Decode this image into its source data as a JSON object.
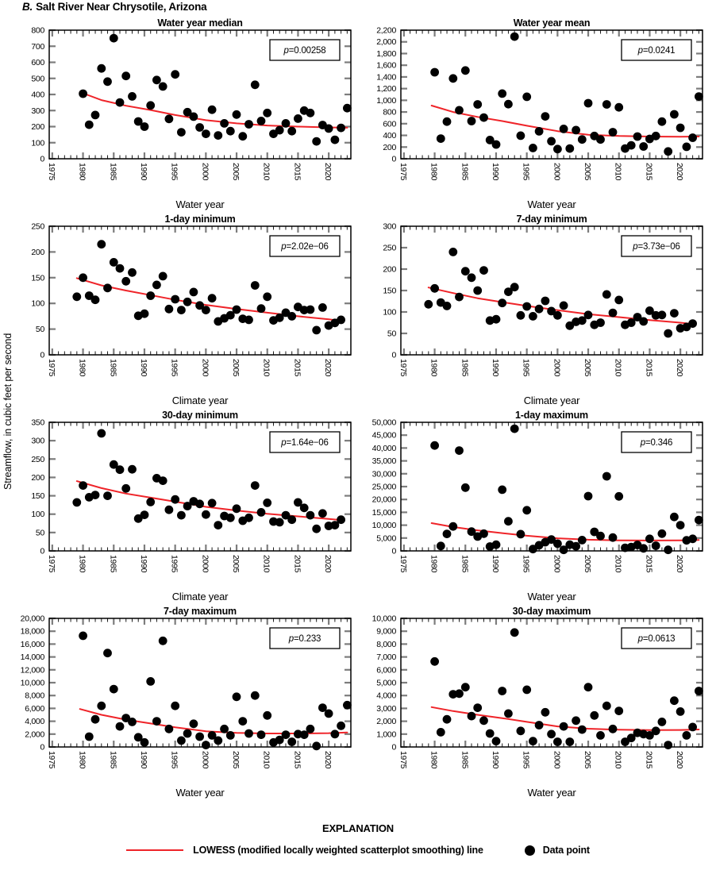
{
  "figure": {
    "title_prefix": "B.",
    "title": "Salt River Near Chrysotile, Arizona",
    "y_axis_label": "Streamflow, in cubic feet per second",
    "legend": {
      "heading": "EXPLANATION",
      "lowess_label": "LOWESS (modified locally weighted scatterplot smoothing) line",
      "point_label": "Data point"
    },
    "colors": {
      "lowess": "#ef2429",
      "point": "#000000"
    },
    "x_axis": {
      "minor_from": 1975,
      "minor_to": 2023,
      "minor_step": 1,
      "major_step": 5,
      "major_label_to": 2020
    }
  },
  "chart_data": [
    {
      "type": "scatter",
      "title": "Water year median",
      "xlabel": "Water year",
      "p_symbol": "p",
      "p_text": "=0.00258",
      "xlim": [
        1974.5,
        2023.6
      ],
      "ylim": [
        0,
        800
      ],
      "y_step": 100,
      "x": [
        1980,
        1981,
        1982,
        1983,
        1984,
        1985,
        1986,
        1987,
        1988,
        1989,
        1990,
        1991,
        1992,
        1993,
        1994,
        1995,
        1996,
        1997,
        1998,
        1999,
        2000,
        2001,
        2002,
        2003,
        2004,
        2005,
        2006,
        2007,
        2008,
        2009,
        2010,
        2011,
        2012,
        2013,
        2014,
        2015,
        2016,
        2017,
        2018,
        2019,
        2020,
        2021,
        2022,
        2023
      ],
      "y": [
        405,
        212,
        272,
        562,
        480,
        750,
        350,
        515,
        388,
        232,
        200,
        332,
        490,
        450,
        248,
        525,
        165,
        290,
        262,
        195,
        155,
        305,
        145,
        220,
        172,
        275,
        140,
        215,
        460,
        235,
        285,
        155,
        178,
        220,
        172,
        250,
        300,
        285,
        108,
        210,
        188,
        118,
        192,
        315
      ],
      "lowess": {
        "x": [
          1979.5,
          1983,
          1987,
          1991,
          1995,
          2000,
          2005,
          2010,
          2015,
          2020,
          2023
        ],
        "y": [
          415,
          365,
          330,
          303,
          272,
          240,
          220,
          207,
          200,
          195,
          193
        ]
      }
    },
    {
      "type": "scatter",
      "title": "Water year mean",
      "xlabel": "Water year",
      "p_symbol": "p",
      "p_text": "=0.0241",
      "xlim": [
        1974.5,
        2023.6
      ],
      "ylim": [
        0,
        2200
      ],
      "y_step": 200,
      "x": [
        1980,
        1981,
        1982,
        1983,
        1984,
        1985,
        1986,
        1987,
        1988,
        1989,
        1990,
        1991,
        1992,
        1993,
        1994,
        1995,
        1996,
        1997,
        1998,
        1999,
        2000,
        2001,
        2002,
        2003,
        2004,
        2005,
        2006,
        2007,
        2008,
        2009,
        2010,
        2011,
        2012,
        2013,
        2014,
        2015,
        2016,
        2017,
        2018,
        2019,
        2020,
        2021,
        2022,
        2023
      ],
      "y": [
        1480,
        345,
        635,
        1375,
        830,
        1510,
        645,
        930,
        705,
        320,
        245,
        1115,
        935,
        2090,
        395,
        1060,
        185,
        470,
        725,
        300,
        165,
        510,
        175,
        490,
        330,
        950,
        390,
        330,
        930,
        455,
        880,
        175,
        230,
        380,
        210,
        340,
        390,
        635,
        125,
        760,
        530,
        205,
        360,
        1065
      ],
      "lowess": {
        "x": [
          1979.5,
          1983,
          1987,
          1991,
          1995,
          2000,
          2005,
          2010,
          2015,
          2020,
          2023
        ],
        "y": [
          910,
          800,
          715,
          645,
          565,
          472,
          412,
          390,
          380,
          378,
          380
        ]
      }
    },
    {
      "type": "scatter",
      "title": "1-day minimum",
      "xlabel": "Climate year",
      "p_symbol": "p",
      "p_text": "=2.02e−06",
      "xlim": [
        1974.5,
        2023.6
      ],
      "ylim": [
        0,
        250
      ],
      "y_step": 50,
      "x": [
        1979,
        1980,
        1981,
        1982,
        1983,
        1984,
        1985,
        1986,
        1987,
        1988,
        1989,
        1990,
        1991,
        1992,
        1993,
        1994,
        1995,
        1996,
        1997,
        1998,
        1999,
        2000,
        2001,
        2002,
        2003,
        2004,
        2005,
        2006,
        2007,
        2008,
        2009,
        2010,
        2011,
        2012,
        2013,
        2014,
        2015,
        2016,
        2017,
        2018,
        2019,
        2020,
        2021,
        2022
      ],
      "y": [
        113,
        150,
        115,
        107,
        215,
        130,
        180,
        168,
        143,
        160,
        76,
        80,
        115,
        136,
        153,
        89,
        108,
        87,
        103,
        122,
        96,
        87,
        110,
        65,
        71,
        77,
        88,
        70,
        68,
        135,
        90,
        113,
        67,
        72,
        82,
        75,
        93,
        87,
        88,
        48,
        92,
        57,
        62,
        68
      ],
      "lowess": {
        "x": [
          1979,
          1983,
          1987,
          1991,
          1995,
          2000,
          2005,
          2010,
          2015,
          2020,
          2022
        ],
        "y": [
          149,
          135,
          125,
          116,
          107,
          97,
          89,
          82,
          75,
          69,
          66
        ]
      }
    },
    {
      "type": "scatter",
      "title": "7-day minimum",
      "xlabel": "Climate year",
      "p_symbol": "p",
      "p_text": "=3.73e−06",
      "xlim": [
        1974.5,
        2023.6
      ],
      "ylim": [
        0,
        300
      ],
      "y_step": 50,
      "x": [
        1979,
        1980,
        1981,
        1982,
        1983,
        1984,
        1985,
        1986,
        1987,
        1988,
        1989,
        1990,
        1991,
        1992,
        1993,
        1994,
        1995,
        1996,
        1997,
        1998,
        1999,
        2000,
        2001,
        2002,
        2003,
        2004,
        2005,
        2006,
        2007,
        2008,
        2009,
        2010,
        2011,
        2012,
        2013,
        2014,
        2015,
        2016,
        2017,
        2018,
        2019,
        2020,
        2021,
        2022
      ],
      "y": [
        118,
        155,
        122,
        114,
        240,
        135,
        195,
        180,
        150,
        197,
        80,
        83,
        121,
        147,
        158,
        92,
        113,
        90,
        107,
        126,
        102,
        92,
        115,
        68,
        77,
        80,
        93,
        70,
        75,
        141,
        98,
        128,
        70,
        75,
        88,
        78,
        103,
        92,
        93,
        50,
        97,
        62,
        65,
        73
      ],
      "lowess": {
        "x": [
          1979,
          1983,
          1987,
          1991,
          1995,
          2000,
          2005,
          2010,
          2015,
          2020,
          2022
        ],
        "y": [
          157,
          144,
          132,
          123,
          114,
          104,
          95,
          88,
          81,
          75,
          72
        ]
      }
    },
    {
      "type": "scatter",
      "title": "30-day minimum",
      "xlabel": "Climate year",
      "p_symbol": "p",
      "p_text": "=1.64e−06",
      "xlim": [
        1974.5,
        2023.6
      ],
      "ylim": [
        0,
        350
      ],
      "y_step": 50,
      "x": [
        1979,
        1980,
        1981,
        1982,
        1983,
        1984,
        1985,
        1986,
        1987,
        1988,
        1989,
        1990,
        1991,
        1992,
        1993,
        1994,
        1995,
        1996,
        1997,
        1998,
        1999,
        2000,
        2001,
        2002,
        2003,
        2004,
        2005,
        2006,
        2007,
        2008,
        2009,
        2010,
        2011,
        2012,
        2013,
        2014,
        2015,
        2016,
        2017,
        2018,
        2019,
        2020,
        2021,
        2022
      ],
      "y": [
        132,
        178,
        146,
        152,
        320,
        150,
        235,
        221,
        170,
        222,
        88,
        98,
        133,
        198,
        191,
        112,
        140,
        97,
        122,
        135,
        128,
        99,
        130,
        70,
        95,
        90,
        115,
        82,
        90,
        178,
        105,
        131,
        80,
        78,
        97,
        85,
        132,
        117,
        97,
        60,
        102,
        68,
        70,
        85
      ],
      "lowess": {
        "x": [
          1979,
          1983,
          1987,
          1991,
          1995,
          2000,
          2005,
          2010,
          2015,
          2020,
          2022
        ],
        "y": [
          190,
          171,
          156,
          145,
          134,
          120,
          110,
          101,
          94,
          87,
          84
        ]
      }
    },
    {
      "type": "scatter",
      "title": "1-day maximum",
      "xlabel": "Water year",
      "p_symbol": "p",
      "p_text": "=0.346",
      "xlim": [
        1974.5,
        2023.6
      ],
      "ylim": [
        0,
        50000
      ],
      "y_step": 5000,
      "x": [
        1980,
        1981,
        1982,
        1983,
        1984,
        1985,
        1986,
        1987,
        1988,
        1989,
        1990,
        1991,
        1992,
        1993,
        1994,
        1995,
        1996,
        1997,
        1998,
        1999,
        2000,
        2001,
        2002,
        2003,
        2004,
        2005,
        2006,
        2007,
        2008,
        2009,
        2010,
        2011,
        2012,
        2013,
        2014,
        2015,
        2016,
        2017,
        2018,
        2019,
        2020,
        2021,
        2022,
        2023
      ],
      "y": [
        41000,
        1900,
        6600,
        9500,
        39000,
        24600,
        7500,
        5600,
        6700,
        1700,
        2400,
        23800,
        11500,
        47500,
        6500,
        15800,
        700,
        2200,
        3400,
        4400,
        2800,
        400,
        2400,
        1800,
        4200,
        21300,
        7400,
        5800,
        29000,
        5200,
        21200,
        1200,
        1500,
        2300,
        1000,
        4700,
        2000,
        6700,
        400,
        13200,
        10000,
        4100,
        4700,
        12000
      ],
      "lowess": {
        "x": [
          1979.5,
          1983,
          1987,
          1991,
          1995,
          2000,
          2005,
          2010,
          2015,
          2020,
          2023
        ],
        "y": [
          10800,
          9300,
          8000,
          6900,
          5900,
          4900,
          4350,
          4100,
          4050,
          4100,
          4250
        ]
      }
    },
    {
      "type": "scatter",
      "title": "7-day maximum",
      "xlabel": "Water year",
      "p_symbol": "p",
      "p_text": "=0.233",
      "xlim": [
        1974.5,
        2023.6
      ],
      "ylim": [
        0,
        20000
      ],
      "y_step": 2000,
      "x": [
        1980,
        1981,
        1982,
        1983,
        1984,
        1985,
        1986,
        1987,
        1988,
        1989,
        1990,
        1991,
        1992,
        1993,
        1994,
        1995,
        1996,
        1997,
        1998,
        1999,
        2000,
        2001,
        2002,
        2003,
        2004,
        2005,
        2006,
        2007,
        2008,
        2009,
        2010,
        2011,
        2012,
        2013,
        2014,
        2015,
        2016,
        2017,
        2018,
        2019,
        2020,
        2021,
        2022,
        2023
      ],
      "y": [
        17300,
        1600,
        4300,
        6400,
        14600,
        9000,
        3200,
        4500,
        3900,
        1500,
        700,
        10200,
        4000,
        16500,
        2800,
        6400,
        1000,
        2100,
        3600,
        1600,
        300,
        1800,
        1000,
        2800,
        1800,
        7800,
        4000,
        2100,
        8000,
        1900,
        4900,
        700,
        1100,
        1900,
        800,
        2000,
        1900,
        2800,
        150,
        6100,
        5200,
        2000,
        3300,
        6500
      ],
      "lowess": {
        "x": [
          1979.5,
          1983,
          1987,
          1991,
          1995,
          2000,
          2005,
          2010,
          2015,
          2020,
          2023
        ],
        "y": [
          5900,
          5000,
          4250,
          3650,
          3050,
          2450,
          2180,
          2100,
          2100,
          2150,
          2250
        ]
      }
    },
    {
      "type": "scatter",
      "title": "30-day maximum",
      "xlabel": "Water year",
      "p_symbol": "p",
      "p_text": "=0.0613",
      "xlim": [
        1974.5,
        2023.6
      ],
      "ylim": [
        0,
        10000
      ],
      "y_step": 1000,
      "x": [
        1980,
        1981,
        1982,
        1983,
        1984,
        1985,
        1986,
        1987,
        1988,
        1989,
        1990,
        1991,
        1992,
        1993,
        1994,
        1995,
        1996,
        1997,
        1998,
        1999,
        2000,
        2001,
        2002,
        2003,
        2004,
        2005,
        2006,
        2007,
        2008,
        2009,
        2010,
        2011,
        2012,
        2013,
        2014,
        2015,
        2016,
        2017,
        2018,
        2019,
        2020,
        2021,
        2022,
        2023
      ],
      "y": [
        6650,
        1150,
        2150,
        4100,
        4150,
        4650,
        2400,
        3050,
        2050,
        1050,
        450,
        4350,
        2600,
        8900,
        1250,
        4450,
        450,
        1700,
        2700,
        1000,
        400,
        1600,
        400,
        2050,
        1350,
        4650,
        2450,
        900,
        3200,
        1400,
        2800,
        400,
        700,
        1100,
        1000,
        900,
        1250,
        1950,
        150,
        3600,
        2750,
        900,
        1550,
        4350
      ],
      "lowess": {
        "x": [
          1979.5,
          1983,
          1987,
          1991,
          1995,
          2000,
          2005,
          2010,
          2015,
          2020,
          2023
        ],
        "y": [
          3100,
          2790,
          2500,
          2240,
          1950,
          1600,
          1420,
          1340,
          1310,
          1320,
          1360
        ]
      }
    }
  ]
}
